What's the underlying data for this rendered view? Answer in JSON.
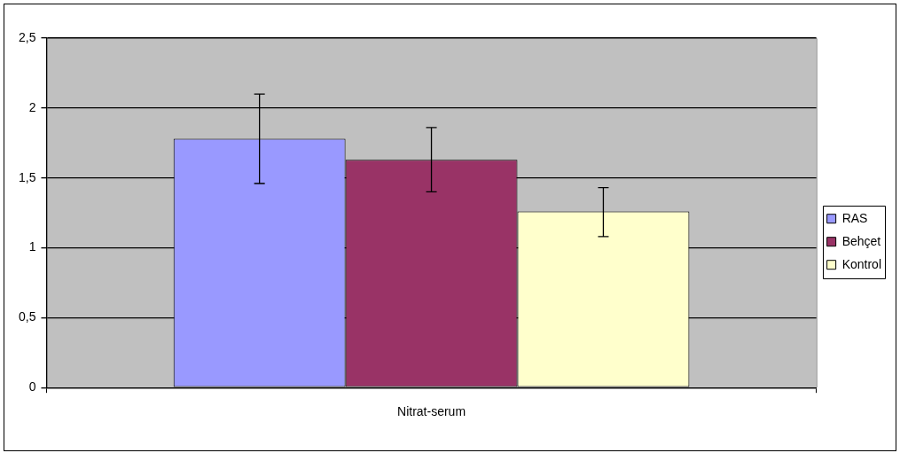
{
  "chart_data": {
    "type": "bar",
    "categories": [
      "Nitrat-serum"
    ],
    "series": [
      {
        "name": "RAS",
        "color": "#9999ff",
        "values": [
          1.78
        ],
        "errors": [
          [
            1.46,
            2.1
          ]
        ]
      },
      {
        "name": "Behçet",
        "color": "#993366",
        "values": [
          1.63
        ],
        "errors": [
          [
            1.4,
            1.86
          ]
        ]
      },
      {
        "name": "Kontrol",
        "color": "#ffffcc",
        "values": [
          1.26
        ],
        "errors": [
          [
            1.08,
            1.43
          ]
        ]
      }
    ],
    "ylim": [
      0,
      2.5
    ],
    "yticks": [
      0,
      {
        "value": 0.5,
        "label": "0,5"
      },
      1,
      {
        "value": 1.5,
        "label": "1,5"
      },
      2,
      {
        "value": 2.5,
        "label": "2,5"
      }
    ],
    "grid": "y",
    "legend": "right"
  }
}
